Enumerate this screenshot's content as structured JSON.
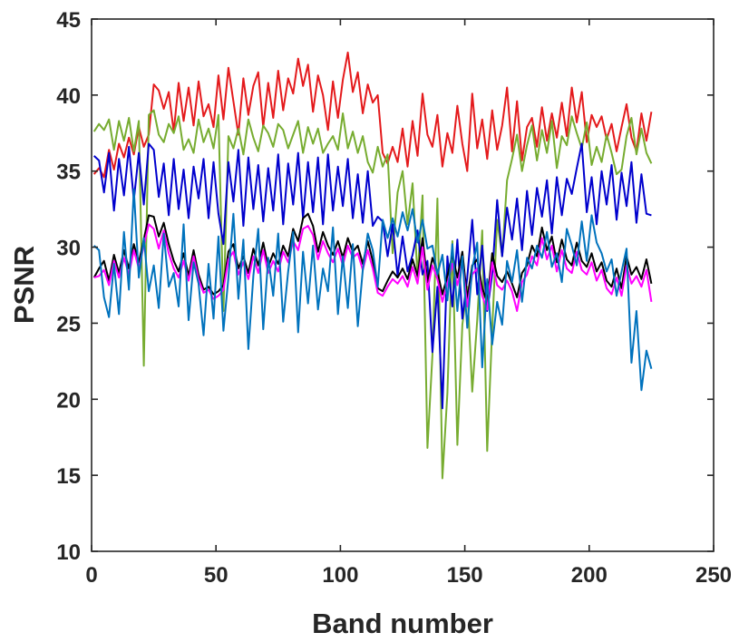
{
  "chart_data": {
    "type": "line",
    "xlabel": "Band number",
    "ylabel": "PSNR",
    "xlim": [
      0,
      250
    ],
    "ylim": [
      10,
      45
    ],
    "xticks": [
      0,
      50,
      100,
      150,
      200,
      250
    ],
    "yticks": [
      10,
      15,
      20,
      25,
      30,
      35,
      40,
      45
    ],
    "grid": false,
    "legend": "none",
    "x": [
      1,
      3,
      5,
      7,
      9,
      11,
      13,
      15,
      17,
      19,
      21,
      23,
      25,
      27,
      29,
      31,
      33,
      35,
      37,
      39,
      41,
      43,
      45,
      47,
      49,
      51,
      53,
      55,
      57,
      59,
      61,
      63,
      65,
      67,
      69,
      71,
      73,
      75,
      77,
      79,
      81,
      83,
      85,
      87,
      89,
      91,
      93,
      95,
      97,
      99,
      101,
      103,
      105,
      107,
      109,
      111,
      113,
      115,
      117,
      119,
      121,
      123,
      125,
      127,
      129,
      131,
      133,
      135,
      137,
      139,
      141,
      143,
      145,
      147,
      149,
      151,
      153,
      155,
      157,
      159,
      161,
      163,
      165,
      167,
      169,
      171,
      173,
      175,
      177,
      179,
      181,
      183,
      185,
      187,
      189,
      191,
      193,
      195,
      197,
      199,
      201,
      203,
      205,
      207,
      209,
      211,
      213,
      215,
      217,
      219,
      221,
      223,
      225
    ],
    "series": [
      {
        "color": "#e41a1c",
        "values": [
          34.8,
          35.2,
          34.6,
          36.4,
          35.1,
          36.8,
          35.9,
          37.2,
          36.1,
          37.9,
          36.6,
          37.4,
          40.7,
          40.3,
          39.1,
          40.2,
          37.6,
          40.8,
          38.3,
          40.5,
          38.0,
          40.9,
          38.6,
          39.4,
          37.9,
          41.3,
          38.4,
          41.8,
          39.6,
          37.4,
          41.1,
          38.7,
          40.6,
          41.5,
          37.9,
          40.8,
          38.5,
          41.6,
          39.0,
          41.1,
          40.1,
          42.4,
          40.6,
          42.0,
          38.9,
          41.3,
          40.0,
          37.7,
          40.9,
          38.5,
          41.0,
          42.8,
          40.2,
          41.5,
          38.8,
          40.7,
          39.5,
          40.0,
          36.2,
          35.5,
          36.6,
          35.6,
          37.8,
          35.3,
          38.3,
          36.0,
          40.1,
          37.4,
          36.6,
          38.7,
          35.3,
          37.5,
          36.2,
          39.3,
          36.8,
          35.0,
          40.1,
          36.5,
          38.4,
          35.8,
          39.0,
          36.4,
          38.0,
          40.5,
          36.3,
          39.6,
          35.7,
          37.9,
          38.5,
          36.6,
          39.2,
          37.0,
          38.8,
          37.2,
          39.5,
          37.3,
          40.5,
          38.2,
          40.2,
          36.9,
          38.7,
          37.9,
          38.6,
          37.1,
          38.1,
          36.3,
          37.9,
          39.4,
          37.2,
          36.3,
          38.8,
          37.0,
          38.9
        ]
      },
      {
        "color": "#77ac30",
        "values": [
          37.6,
          38.1,
          37.7,
          38.4,
          36.4,
          38.3,
          37.0,
          38.5,
          36.3,
          38.3,
          22.2,
          38.7,
          39.0,
          37.4,
          36.9,
          38.1,
          37.5,
          38.6,
          36.4,
          37.1,
          36.2,
          38.4,
          36.9,
          37.8,
          36.5,
          38.7,
          25.8,
          37.3,
          36.5,
          37.8,
          36.1,
          38.4,
          37.2,
          36.3,
          38.0,
          37.5,
          36.6,
          38.1,
          37.7,
          36.5,
          37.4,
          38.3,
          36.2,
          37.9,
          36.8,
          37.8,
          36.2,
          36.8,
          37.3,
          36.4,
          38.8,
          36.5,
          37.6,
          36.2,
          37.3,
          35.6,
          34.9,
          36.6,
          35.3,
          36.1,
          29.6,
          33.6,
          35.0,
          31.5,
          34.2,
          28.0,
          33.4,
          16.8,
          22.9,
          33.2,
          14.8,
          20.4,
          30.4,
          17.0,
          24.9,
          27.4,
          20.5,
          25.2,
          31.1,
          16.6,
          24.6,
          31.8,
          29.4,
          34.4,
          35.8,
          37.4,
          35.0,
          36.7,
          38.0,
          35.7,
          37.7,
          36.2,
          38.3,
          35.2,
          37.3,
          36.7,
          38.6,
          37.5,
          36.5,
          38.2,
          35.4,
          36.6,
          35.6,
          37.4,
          36.2,
          34.8,
          35.1,
          37.3,
          38.5,
          36.1,
          37.8,
          36.2,
          35.5
        ]
      },
      {
        "color": "#0000cd",
        "values": [
          36.0,
          35.7,
          33.6,
          36.2,
          32.4,
          35.8,
          33.4,
          36.6,
          33.1,
          36.2,
          32.8,
          36.8,
          36.4,
          33.3,
          35.5,
          32.1,
          35.8,
          32.5,
          35.1,
          31.9,
          35.3,
          33.2,
          35.8,
          31.9,
          35.6,
          32.2,
          30.2,
          35.6,
          33.0,
          36.4,
          31.4,
          35.9,
          32.5,
          35.4,
          31.7,
          35.2,
          32.4,
          36.1,
          31.5,
          35.5,
          32.8,
          36.2,
          31.9,
          35.6,
          32.3,
          35.9,
          31.5,
          36.1,
          32.4,
          35.3,
          32.7,
          35.8,
          31.9,
          34.8,
          31.6,
          35.0,
          31.4,
          32.0,
          31.7,
          29.4,
          31.5,
          28.1,
          30.7,
          28.4,
          29.5,
          31.1,
          28.2,
          29.1,
          23.1,
          27.4,
          19.4,
          29.4,
          26.1,
          30.5,
          25.3,
          28.0,
          31.8,
          26.9,
          30.1,
          25.8,
          28.2,
          33.1,
          29.4,
          32.6,
          30.5,
          33.2,
          29.8,
          33.7,
          30.8,
          33.9,
          32.0,
          34.4,
          30.9,
          34.6,
          32.1,
          34.5,
          33.5,
          35.2,
          36.8,
          32.3,
          34.6,
          31.5,
          35.0,
          32.8,
          35.4,
          31.8,
          34.9,
          32.7,
          35.6,
          31.6,
          34.8,
          32.2,
          32.1
        ]
      },
      {
        "color": "#000000",
        "values": [
          28.0,
          28.6,
          29.1,
          27.8,
          29.5,
          28.3,
          29.8,
          28.6,
          30.2,
          29.0,
          30.5,
          32.1,
          32.0,
          30.7,
          31.6,
          30.2,
          29.1,
          28.4,
          29.6,
          28.1,
          29.8,
          28.2,
          27.2,
          27.4,
          26.9,
          27.1,
          27.5,
          29.7,
          30.2,
          28.6,
          29.4,
          28.3,
          29.9,
          28.8,
          30.3,
          28.7,
          29.6,
          28.9,
          30.1,
          29.4,
          31.2,
          30.4,
          31.9,
          32.2,
          31.4,
          29.7,
          31.0,
          30.1,
          29.5,
          30.4,
          29.3,
          30.6,
          29.7,
          30.1,
          28.9,
          30.4,
          29.1,
          27.3,
          27.1,
          27.8,
          28.4,
          28.0,
          28.6,
          27.9,
          29.2,
          28.1,
          30.6,
          27.7,
          29.3,
          28.4,
          26.9,
          28.1,
          29.5,
          28.0,
          29.7,
          26.6,
          28.8,
          29.2,
          27.3,
          26.4,
          29.6,
          28.1,
          27.7,
          28.4,
          27.6,
          26.7,
          28.3,
          28.8,
          30.1,
          29.4,
          31.3,
          29.8,
          30.7,
          29.0,
          30.5,
          29.2,
          28.8,
          30.3,
          29.1,
          28.7,
          29.6,
          28.4,
          29.0,
          27.8,
          27.4,
          28.6,
          27.3,
          29.4,
          28.2,
          28.7,
          27.9,
          29.2,
          27.6
        ]
      },
      {
        "color": "#ff00ff",
        "values": [
          28.0,
          28.1,
          28.5,
          27.5,
          29.1,
          28.0,
          29.3,
          28.2,
          29.8,
          28.6,
          30.1,
          31.5,
          31.2,
          29.9,
          31.1,
          29.6,
          28.6,
          28.0,
          29.1,
          27.8,
          29.4,
          27.9,
          27.0,
          27.2,
          26.6,
          26.8,
          27.2,
          29.2,
          29.7,
          28.2,
          29.0,
          27.9,
          29.4,
          28.3,
          29.8,
          28.3,
          29.1,
          28.4,
          29.7,
          29.0,
          30.4,
          29.8,
          31.2,
          31.4,
          30.8,
          29.2,
          30.4,
          29.6,
          29.0,
          29.9,
          28.8,
          30.1,
          29.3,
          29.6,
          28.5,
          29.8,
          28.6,
          27.0,
          26.8,
          27.4,
          27.9,
          27.6,
          28.1,
          27.4,
          28.7,
          27.6,
          30.0,
          27.2,
          28.8,
          27.9,
          26.4,
          27.6,
          28.9,
          27.5,
          29.1,
          26.1,
          28.2,
          28.6,
          26.8,
          25.9,
          29.0,
          27.5,
          27.2,
          27.8,
          27.1,
          25.8,
          27.7,
          28.2,
          29.4,
          28.8,
          30.6,
          29.2,
          30.1,
          28.4,
          29.8,
          28.6,
          28.3,
          29.7,
          28.5,
          28.2,
          29.0,
          27.8,
          28.5,
          27.3,
          26.9,
          28.0,
          26.8,
          28.8,
          27.6,
          28.1,
          27.4,
          28.5,
          26.4
        ]
      },
      {
        "color": "#0072bd",
        "values": [
          30.1,
          29.8,
          26.7,
          25.4,
          28.9,
          25.6,
          31.0,
          27.2,
          33.8,
          28.0,
          30.6,
          27.1,
          28.8,
          26.0,
          30.9,
          27.4,
          28.3,
          26.1,
          31.5,
          25.2,
          29.0,
          27.6,
          24.2,
          28.9,
          25.3,
          30.7,
          24.5,
          28.0,
          32.2,
          26.6,
          30.5,
          23.3,
          28.1,
          31.2,
          24.6,
          29.3,
          26.8,
          30.9,
          25.1,
          28.4,
          31.0,
          24.4,
          29.7,
          26.3,
          30.1,
          25.9,
          28.6,
          27.1,
          31.3,
          25.6,
          29.4,
          26.0,
          30.2,
          24.8,
          28.5,
          30.9,
          29.8,
          27.4,
          31.8,
          30.6,
          31.9,
          30.7,
          32.3,
          31.1,
          32.5,
          30.3,
          31.8,
          29.9,
          30.1,
          28.2,
          29.5,
          26.5,
          30.2,
          25.8,
          29.4,
          24.7,
          28.6,
          30.3,
          22.1,
          27.9,
          23.6,
          26.4,
          24.9,
          29.1,
          27.7,
          29.8,
          26.4,
          29.3,
          28.6,
          30.1,
          29.3,
          31.0,
          28.7,
          29.6,
          27.7,
          31.2,
          30.1,
          28.8,
          31.7,
          29.1,
          32.1,
          30.3,
          29.6,
          28.4,
          29.2,
          26.8,
          28.4,
          29.9,
          22.4,
          25.8,
          20.6,
          23.2,
          22.0
        ]
      }
    ]
  }
}
